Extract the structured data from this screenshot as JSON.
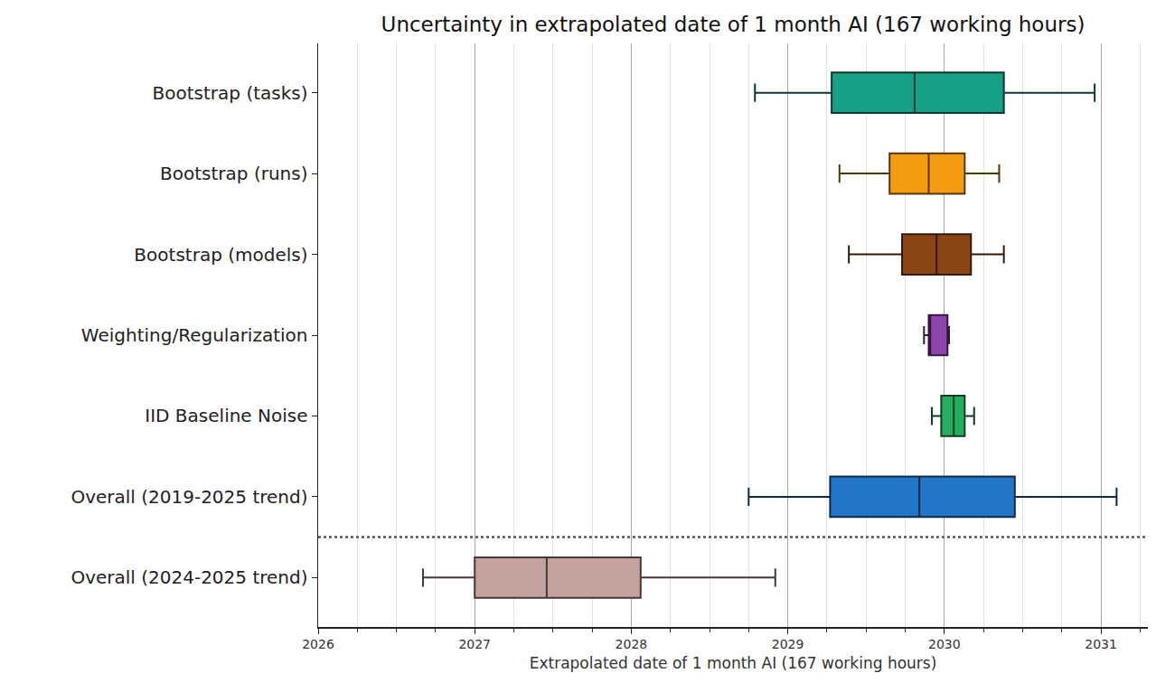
{
  "chart_data": {
    "type": "box",
    "orientation": "horizontal",
    "title": "Uncertainty in extrapolated date of 1 month AI (167 working hours)",
    "x_label": "Extrapolated date of 1 month AI (167 working hours)",
    "categories": [
      "Bootstrap (tasks)",
      "Bootstrap (runs)",
      "Bootstrap (models)",
      "Weighting/Regularization",
      "IID Baseline Noise",
      "Overall (2019-2025 trend)",
      "Overall (2024-2025 trend)"
    ],
    "whisker_low": [
      2028.79,
      2029.33,
      2029.39,
      2029.87,
      2029.92,
      2028.75,
      2026.67
    ],
    "q1": [
      2029.28,
      2029.65,
      2029.73,
      2029.9,
      2029.98,
      2029.27,
      2027.0
    ],
    "median": [
      2029.81,
      2029.9,
      2029.95,
      2029.91,
      2030.06,
      2029.84,
      2027.46
    ],
    "q3": [
      2030.38,
      2030.13,
      2030.17,
      2030.02,
      2030.13,
      2030.45,
      2028.06
    ],
    "whisker_high": [
      2030.96,
      2030.35,
      2030.38,
      2030.03,
      2030.19,
      2031.1,
      2028.92
    ],
    "colors": [
      "#16a085",
      "#f39c12",
      "#8b4513",
      "#8e44ad",
      "#27ae60",
      "#2176c7",
      "#c4a29e"
    ],
    "xlim": [
      2026,
      2031.3
    ],
    "xticks": [
      2026,
      2027,
      2028,
      2029,
      2030,
      2031
    ],
    "grid": true
  }
}
